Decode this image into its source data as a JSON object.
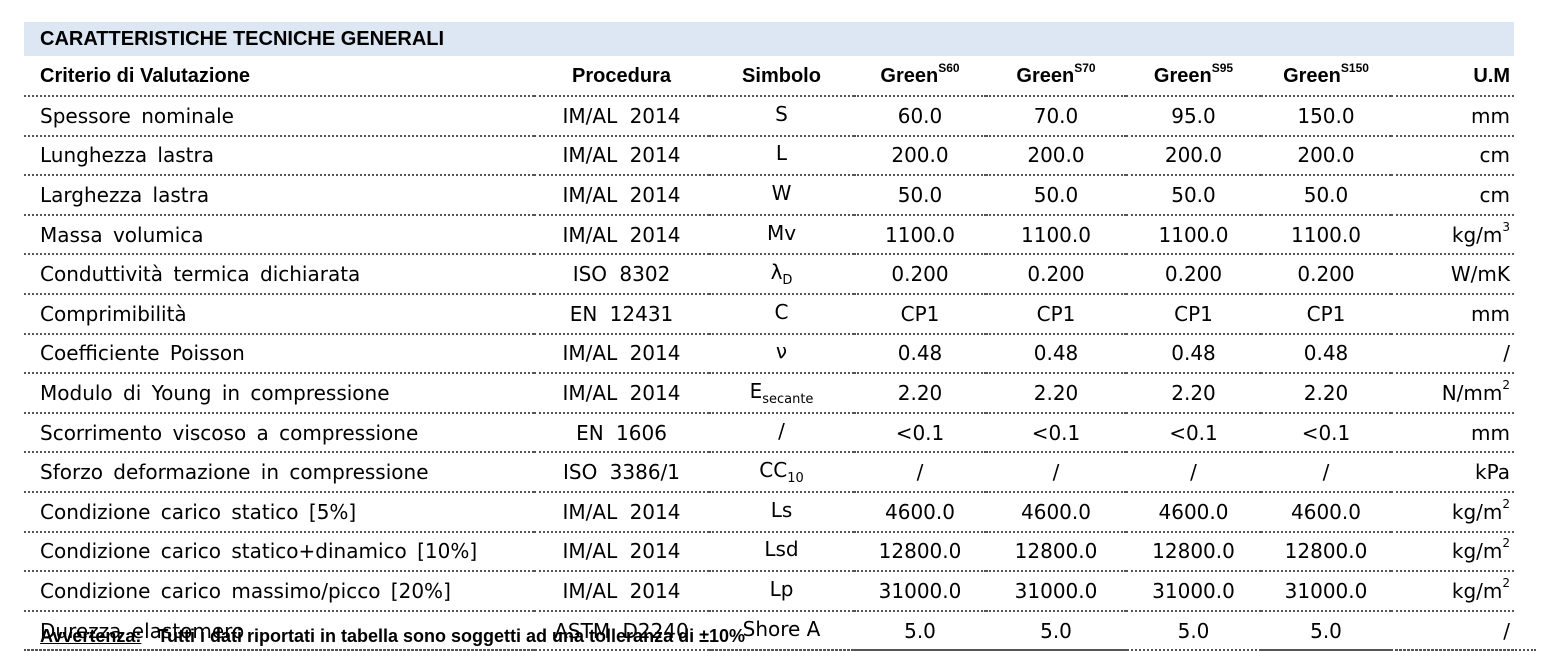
{
  "title": "CARATTERISTICHE TECNICHE GENERALI",
  "headers": {
    "criterio": "Criterio di Valutazione",
    "procedura": "Procedura",
    "simbolo": "Simbolo",
    "products": [
      {
        "base": "Green",
        "sup": "S60"
      },
      {
        "base": "Green",
        "sup": "S70"
      },
      {
        "base": "Green",
        "sup": "S95"
      },
      {
        "base": "Green",
        "sup": "S150"
      }
    ],
    "um": "U.M"
  },
  "rows": [
    {
      "name": "Spessore nominale",
      "proc": "IM/AL 2014",
      "sym": "S",
      "sym_sub": "",
      "vals": [
        "60.0",
        "70.0",
        "95.0",
        "150.0"
      ],
      "um": "mm",
      "um_sup": ""
    },
    {
      "name": "Lunghezza lastra",
      "proc": "IM/AL 2014",
      "sym": "L",
      "sym_sub": "",
      "vals": [
        "200.0",
        "200.0",
        "200.0",
        "200.0"
      ],
      "um": "cm",
      "um_sup": ""
    },
    {
      "name": "Larghezza lastra",
      "proc": "IM/AL 2014",
      "sym": "W",
      "sym_sub": "",
      "vals": [
        "50.0",
        "50.0",
        "50.0",
        "50.0"
      ],
      "um": "cm",
      "um_sup": ""
    },
    {
      "name": "Massa volumica",
      "proc": "IM/AL 2014",
      "sym": "Mv",
      "sym_sub": "",
      "vals": [
        "1100.0",
        "1100.0",
        "1100.0",
        "1100.0"
      ],
      "um": "kg/m",
      "um_sup": "3"
    },
    {
      "name": "Conduttività termica dichiarata",
      "proc": "ISO 8302",
      "sym": "λ",
      "sym_sub": "D",
      "vals": [
        "0.200",
        "0.200",
        "0.200",
        "0.200"
      ],
      "um": "W/mK",
      "um_sup": ""
    },
    {
      "name": "Comprimibilità",
      "proc": "EN 12431",
      "sym": "C",
      "sym_sub": "",
      "vals": [
        "CP1",
        "CP1",
        "CP1",
        "CP1"
      ],
      "um": "mm",
      "um_sup": ""
    },
    {
      "name": "Coefficiente Poisson",
      "proc": "IM/AL 2014",
      "sym": "ν",
      "sym_sub": "",
      "vals": [
        "0.48",
        "0.48",
        "0.48",
        "0.48"
      ],
      "um": "/",
      "um_sup": ""
    },
    {
      "name": "Modulo di Young in compressione",
      "proc": "IM/AL 2014",
      "sym": "E",
      "sym_sub": "secante",
      "vals": [
        "2.20",
        "2.20",
        "2.20",
        "2.20"
      ],
      "um": "N/mm",
      "um_sup": "2"
    },
    {
      "name": "Scorrimento viscoso a compressione",
      "proc": "EN 1606",
      "sym": "/",
      "sym_sub": "",
      "vals": [
        "<0.1",
        "<0.1",
        "<0.1",
        "<0.1"
      ],
      "um": "mm",
      "um_sup": ""
    },
    {
      "name": "Sforzo deformazione in compressione",
      "proc": "ISO 3386/1",
      "sym": "CC",
      "sym_sub": "10",
      "vals": [
        "/",
        "/",
        "/",
        "/"
      ],
      "um": "kPa",
      "um_sup": ""
    },
    {
      "name": "Condizione carico statico [5%]",
      "proc": "IM/AL 2014",
      "sym": "Ls",
      "sym_sub": "",
      "vals": [
        "4600.0",
        "4600.0",
        "4600.0",
        "4600.0"
      ],
      "um": "kg/m",
      "um_sup": "2"
    },
    {
      "name": "Condizione carico statico+dinamico [10%]",
      "proc": "IM/AL 2014",
      "sym": "Lsd",
      "sym_sub": "",
      "vals": [
        "12800.0",
        "12800.0",
        "12800.0",
        "12800.0"
      ],
      "um": "kg/m",
      "um_sup": "2"
    },
    {
      "name": "Condizione carico massimo/picco [20%]",
      "proc": "IM/AL 2014",
      "sym": "Lp",
      "sym_sub": "",
      "vals": [
        "31000.0",
        "31000.0",
        "31000.0",
        "31000.0"
      ],
      "um": "kg/m",
      "um_sup": "2"
    },
    {
      "name": "Durezza elastomero",
      "proc": "ASTM D2240",
      "sym": "Shore A",
      "sym_sub": "",
      "vals": [
        "5.0",
        "5.0",
        "5.0",
        "5.0"
      ],
      "um": "/",
      "um_sup": ""
    }
  ],
  "note": {
    "label": "Avvertenza:",
    "text": "Tutti i dati riportati in tabella sono soggetti ad una tolleranza di ±10%"
  }
}
